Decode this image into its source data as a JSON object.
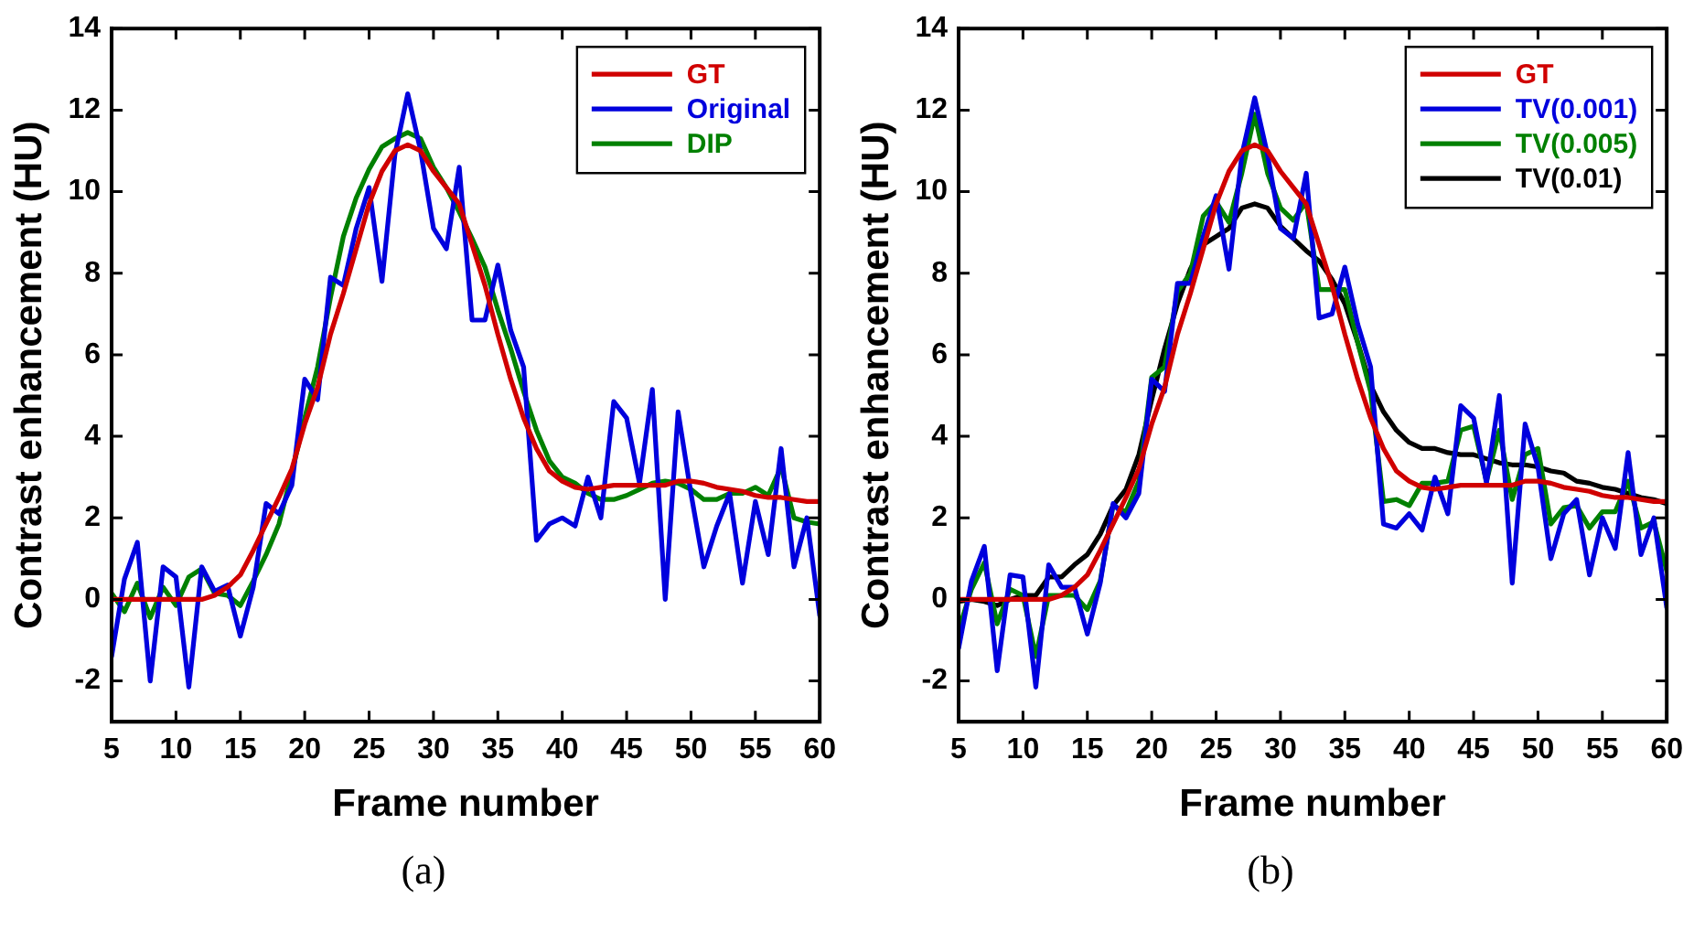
{
  "chart_data": [
    {
      "type": "line",
      "xlabel": "Frame number",
      "ylabel": "Contrast enhancement (HU)",
      "x": [
        5,
        6,
        7,
        8,
        9,
        10,
        11,
        12,
        13,
        14,
        15,
        16,
        17,
        18,
        19,
        20,
        21,
        22,
        23,
        24,
        25,
        26,
        27,
        28,
        29,
        30,
        31,
        32,
        33,
        34,
        35,
        36,
        37,
        38,
        39,
        40,
        41,
        42,
        43,
        44,
        45,
        46,
        47,
        48,
        49,
        50,
        51,
        52,
        53,
        54,
        55,
        56,
        57,
        58,
        59,
        60
      ],
      "xlim": [
        5,
        60
      ],
      "xticks": [
        5,
        10,
        15,
        20,
        25,
        30,
        35,
        40,
        45,
        50,
        55,
        60
      ],
      "ylim": [
        -3,
        14
      ],
      "yticks": [
        -2,
        0,
        2,
        4,
        6,
        8,
        10,
        12,
        14
      ],
      "legend": "top right",
      "annotations": [
        "(a)"
      ],
      "series": [
        {
          "name": "GT",
          "color": "#d00000",
          "values": [
            0,
            0,
            0,
            0,
            0,
            0,
            0,
            0,
            0.1,
            0.3,
            0.6,
            1.2,
            1.85,
            2.5,
            3.2,
            4.3,
            5.2,
            6.5,
            7.5,
            8.6,
            9.7,
            10.5,
            11,
            11.15,
            11,
            10.5,
            10.1,
            9.7,
            8.7,
            7.7,
            6.5,
            5.4,
            4.45,
            3.7,
            3.15,
            2.9,
            2.75,
            2.7,
            2.75,
            2.8,
            2.8,
            2.8,
            2.8,
            2.8,
            2.9,
            2.9,
            2.85,
            2.75,
            2.7,
            2.65,
            2.55,
            2.5,
            2.5,
            2.45,
            2.4,
            2.4
          ]
        },
        {
          "name": "Original",
          "color": "#0000dd",
          "values": [
            -1.4,
            0.5,
            1.4,
            -2,
            0.8,
            0.55,
            -2.15,
            0.8,
            0.2,
            0.35,
            -0.9,
            0.3,
            2.35,
            2.1,
            2.8,
            5.4,
            4.9,
            7.9,
            7.7,
            9.1,
            10.1,
            7.8,
            10.9,
            12.4,
            11,
            9.1,
            8.6,
            10.6,
            6.85,
            6.85,
            8.2,
            6.6,
            5.7,
            1.45,
            1.85,
            2,
            1.8,
            3,
            2,
            4.85,
            4.45,
            2.85,
            5.15,
            0,
            4.6,
            2.6,
            0.8,
            1.8,
            2.6,
            0.4,
            2.4,
            1.1,
            3.7,
            0.8,
            2,
            -0.4
          ]
        },
        {
          "name": "DIP",
          "color": "#008000",
          "values": [
            0.15,
            -0.3,
            0.4,
            -0.45,
            0.3,
            -0.15,
            0.55,
            0.75,
            0.15,
            0.1,
            -0.15,
            0.45,
            1.1,
            1.85,
            3.1,
            4.45,
            5.7,
            7.4,
            8.9,
            9.85,
            10.55,
            11.1,
            11.3,
            11.45,
            11.3,
            10.6,
            10.1,
            9.5,
            8.85,
            8.15,
            7.1,
            6.15,
            5.1,
            4.15,
            3.4,
            3,
            2.85,
            2.6,
            2.45,
            2.45,
            2.55,
            2.7,
            2.85,
            2.9,
            2.85,
            2.7,
            2.45,
            2.45,
            2.6,
            2.6,
            2.75,
            2.55,
            3.25,
            2,
            1.9,
            1.85
          ]
        }
      ]
    },
    {
      "type": "line",
      "xlabel": "Frame number",
      "ylabel": "Contrast enhancement (HU)",
      "x": [
        5,
        6,
        7,
        8,
        9,
        10,
        11,
        12,
        13,
        14,
        15,
        16,
        17,
        18,
        19,
        20,
        21,
        22,
        23,
        24,
        25,
        26,
        27,
        28,
        29,
        30,
        31,
        32,
        33,
        34,
        35,
        36,
        37,
        38,
        39,
        40,
        41,
        42,
        43,
        44,
        45,
        46,
        47,
        48,
        49,
        50,
        51,
        52,
        53,
        54,
        55,
        56,
        57,
        58,
        59,
        60
      ],
      "xlim": [
        5,
        60
      ],
      "xticks": [
        5,
        10,
        15,
        20,
        25,
        30,
        35,
        40,
        45,
        50,
        55,
        60
      ],
      "ylim": [
        -3,
        14
      ],
      "yticks": [
        -2,
        0,
        2,
        4,
        6,
        8,
        10,
        12,
        14
      ],
      "legend": "top right",
      "annotations": [
        "(b)"
      ],
      "series": [
        {
          "name": "GT",
          "color": "#d00000",
          "values": [
            0,
            0,
            0,
            0,
            0,
            0,
            0,
            0,
            0.1,
            0.3,
            0.6,
            1.2,
            1.85,
            2.5,
            3.2,
            4.3,
            5.2,
            6.5,
            7.5,
            8.6,
            9.7,
            10.5,
            11,
            11.15,
            11,
            10.5,
            10.1,
            9.7,
            8.7,
            7.7,
            6.5,
            5.4,
            4.45,
            3.7,
            3.15,
            2.9,
            2.75,
            2.7,
            2.75,
            2.8,
            2.8,
            2.8,
            2.8,
            2.8,
            2.9,
            2.9,
            2.85,
            2.75,
            2.7,
            2.65,
            2.55,
            2.5,
            2.5,
            2.45,
            2.4,
            2.4
          ]
        },
        {
          "name": "TV(0.001)",
          "color": "#0000dd",
          "values": [
            -1.2,
            0.45,
            1.3,
            -1.75,
            0.6,
            0.55,
            -2.15,
            0.85,
            0.3,
            0.3,
            -0.85,
            0.4,
            2.35,
            2,
            2.6,
            5.4,
            5.1,
            7.75,
            7.75,
            8.9,
            9.9,
            8.1,
            10.9,
            12.3,
            10.9,
            9.1,
            8.85,
            10.45,
            6.9,
            7,
            8.15,
            6.75,
            5.7,
            1.85,
            1.75,
            2.1,
            1.7,
            3,
            2.1,
            4.75,
            4.45,
            2.85,
            5,
            0.4,
            4.3,
            3.25,
            1,
            2.1,
            2.45,
            0.6,
            2,
            1.25,
            3.6,
            1.1,
            2,
            -0.2
          ]
        },
        {
          "name": "TV(0.005)",
          "color": "#008000",
          "values": [
            -0.75,
            0.25,
            0.9,
            -0.6,
            0.25,
            0.1,
            -1.4,
            0.1,
            0.1,
            0.1,
            -0.25,
            0.45,
            2.3,
            2.15,
            2.9,
            5.45,
            5.7,
            7.55,
            8,
            9.4,
            9.75,
            9.25,
            10.45,
            11.9,
            10.45,
            9.6,
            9.3,
            9.75,
            7.6,
            7.6,
            7.6,
            6.3,
            5.1,
            2.4,
            2.45,
            2.3,
            2.85,
            2.85,
            2.9,
            4.15,
            4.25,
            2.9,
            4.15,
            2.45,
            3.55,
            3.7,
            1.85,
            2.25,
            2.3,
            1.75,
            2.15,
            2.15,
            2.9,
            1.75,
            1.9,
            0.7
          ]
        },
        {
          "name": "TV(0.01)",
          "color": "#000000",
          "values": [
            -0.05,
            0,
            -0.05,
            -0.15,
            0,
            0.1,
            0.1,
            0.55,
            0.55,
            0.85,
            1.1,
            1.6,
            2.3,
            2.7,
            3.55,
            4.9,
            6.15,
            7.25,
            8.1,
            8.7,
            8.9,
            9.1,
            9.6,
            9.7,
            9.6,
            9.15,
            8.85,
            8.55,
            8.3,
            7.85,
            7.25,
            6.3,
            5.25,
            4.6,
            4.15,
            3.85,
            3.7,
            3.7,
            3.6,
            3.55,
            3.55,
            3.45,
            3.35,
            3.3,
            3.3,
            3.25,
            3.15,
            3.1,
            2.9,
            2.85,
            2.75,
            2.7,
            2.6,
            2.5,
            2.45,
            2.35
          ]
        }
      ]
    }
  ]
}
